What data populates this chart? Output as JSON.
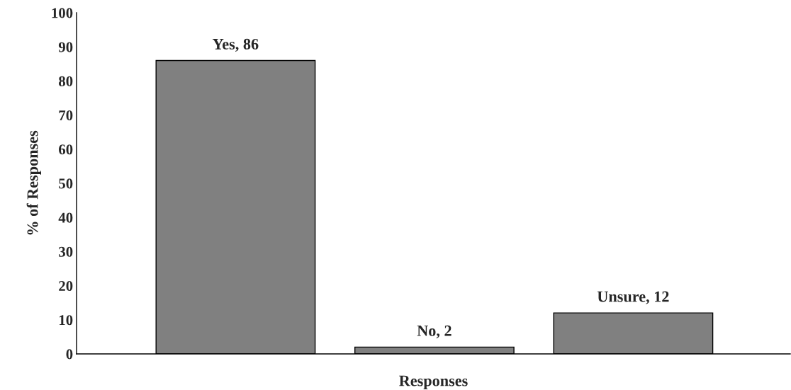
{
  "chart_data": {
    "type": "bar",
    "xlabel": "Responses",
    "ylabel": "% of Responses",
    "categories": [
      null,
      null,
      null
    ],
    "values": [
      86,
      2,
      12
    ],
    "value_labels": [
      "Yes, 86",
      "No, 2",
      "Unsure, 12"
    ],
    "color": "#808080",
    "ylim": [
      0,
      100
    ],
    "yticks": [
      0,
      10,
      20,
      30,
      40,
      50,
      60,
      70,
      80,
      90,
      100
    ],
    "grid": false,
    "legend": false
  }
}
